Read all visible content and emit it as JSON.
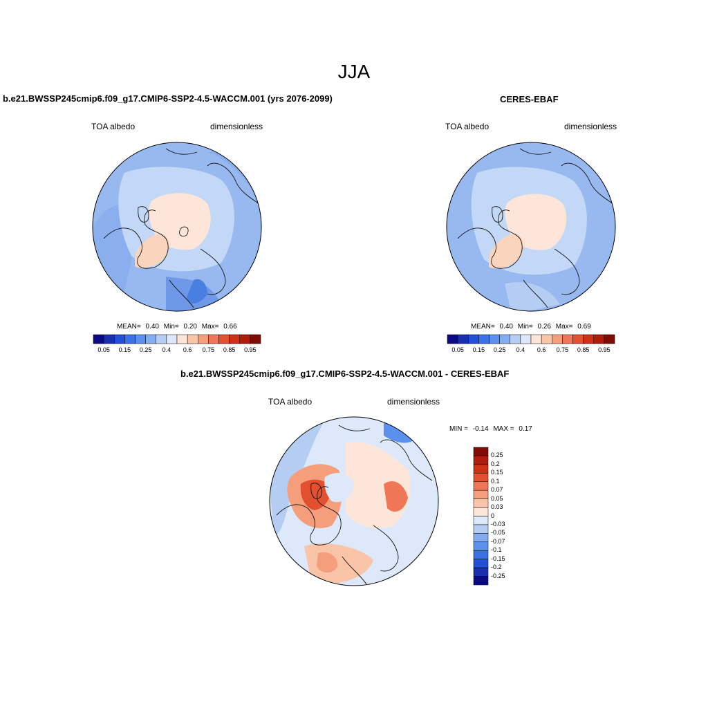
{
  "title": "JJA",
  "panels": [
    {
      "title": "b.e21.BWSSP245cmip6.f09_g17.CMIP6-SSP2-4.5-WACCM.001 (yrs 2076-2099)",
      "left_label": "TOA albedo",
      "right_label": "dimensionless",
      "stats": {
        "mean_label": "MEAN=",
        "mean": "0.40",
        "min_label": "Min=",
        "min": "0.20",
        "max_label": "Max=",
        "max": "0.66"
      }
    },
    {
      "title": "CERES-EBAF",
      "left_label": "TOA albedo",
      "right_label": "dimensionless",
      "stats": {
        "mean_label": "MEAN=",
        "mean": "0.40",
        "min_label": "Min=",
        "min": "0.26",
        "max_label": "Max=",
        "max": "0.69"
      }
    },
    {
      "title": "b.e21.BWSSP245cmip6.f09_g17.CMIP6-SSP2-4.5-WACCM.001 - CERES-EBAF",
      "left_label": "TOA albedo",
      "right_label": "dimensionless",
      "stats": {
        "min_label": "MIN =",
        "min": "-0.14",
        "max_label": "MAX =",
        "max": "0.17"
      }
    }
  ],
  "abs_colorbar": {
    "ticks": [
      "0.05",
      "0.15",
      "0.25",
      "0.4",
      "0.6",
      "0.75",
      "0.85",
      "0.95"
    ],
    "colors": [
      "#0a0a85",
      "#1a2fb0",
      "#2150d6",
      "#3a72e6",
      "#5b90ee",
      "#84acf0",
      "#b5cdf3",
      "#dde9fb",
      "#fde6d9",
      "#f9c4a8",
      "#f59e7c",
      "#ef7656",
      "#e3502f",
      "#ce3118",
      "#ae1c0c",
      "#7e0c04"
    ]
  },
  "diff_colorbar": {
    "ticks": [
      "0.25",
      "0.2",
      "0.15",
      "0.1",
      "0.07",
      "0.05",
      "0.03",
      "0",
      "-0.03",
      "-0.05",
      "-0.07",
      "-0.1",
      "-0.15",
      "-0.2",
      "-0.25"
    ],
    "colors": [
      "#7e0c04",
      "#ae1c0c",
      "#ce3118",
      "#e3502f",
      "#ef7656",
      "#f59e7c",
      "#f9c4a8",
      "#fde6d9",
      "#dde9fb",
      "#b5cdf3",
      "#84acf0",
      "#5b90ee",
      "#3a72e6",
      "#2150d6",
      "#1a2fb0",
      "#0a0a85"
    ]
  }
}
